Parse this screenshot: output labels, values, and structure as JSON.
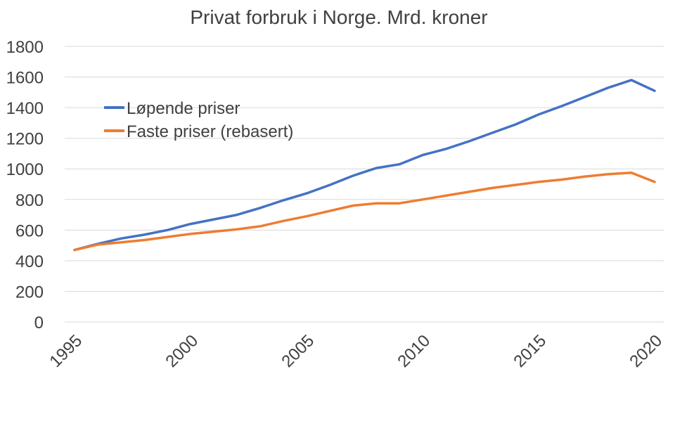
{
  "chart_data": {
    "type": "line",
    "title": "Privat forbruk i Norge. Mrd. kroner",
    "x": [
      1995,
      1996,
      1997,
      1998,
      1999,
      2000,
      2001,
      2002,
      2003,
      2004,
      2005,
      2006,
      2007,
      2008,
      2009,
      2010,
      2011,
      2012,
      2013,
      2014,
      2015,
      2016,
      2017,
      2018,
      2019,
      2020
    ],
    "xticks": [
      "1995",
      "2000",
      "2005",
      "2010",
      "2015",
      "2020"
    ],
    "yticks": [
      "0",
      "200",
      "400",
      "600",
      "800",
      "1000",
      "1200",
      "1400",
      "1600",
      "1800"
    ],
    "ylim": [
      0,
      1800
    ],
    "xlim": [
      1995,
      2020
    ],
    "grid": true,
    "legend_position": "upper-left",
    "series": [
      {
        "name": "Løpende priser",
        "color": "#4472C4",
        "values": [
          470,
          510,
          545,
          570,
          600,
          640,
          670,
          700,
          745,
          795,
          840,
          895,
          955,
          1005,
          1030,
          1090,
          1130,
          1180,
          1235,
          1290,
          1355,
          1410,
          1470,
          1530,
          1580,
          1510
        ]
      },
      {
        "name": "Faste priser (rebasert)",
        "color": "#ED7D31",
        "values": [
          470,
          505,
          520,
          535,
          555,
          575,
          590,
          605,
          625,
          660,
          690,
          725,
          760,
          775,
          775,
          800,
          825,
          850,
          875,
          895,
          915,
          930,
          950,
          965,
          975,
          915
        ]
      }
    ]
  }
}
